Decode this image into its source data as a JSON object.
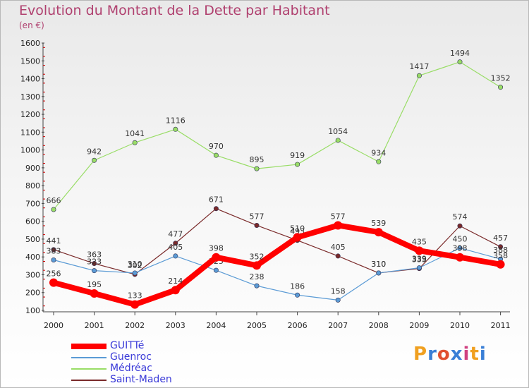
{
  "chart_data": {
    "type": "line",
    "title": "Evolution du Montant de la Dette par Habitant",
    "subtitle": "(en €)",
    "x": [
      "2000",
      "2001",
      "2002",
      "2003",
      "2004",
      "2005",
      "2006",
      "2007",
      "2008",
      "2009",
      "2010",
      "2011"
    ],
    "ylim": [
      100,
      1600
    ],
    "yticks": [
      100,
      200,
      300,
      400,
      500,
      600,
      700,
      800,
      900,
      1000,
      1100,
      1200,
      1300,
      1400,
      1500,
      1600
    ],
    "grid": false,
    "legend_position": "bottom-left",
    "series": [
      {
        "name": "GUITTé",
        "color": "#ff0000",
        "values": [
          256,
          195,
          133,
          214,
          398,
          352,
          510,
          577,
          539,
          435,
          398,
          358
        ]
      },
      {
        "name": "Guenroc",
        "color": "#5b9bd5",
        "values": [
          383,
          323,
          310,
          405,
          325,
          238,
          186,
          158,
          310,
          339,
          450,
          388
        ]
      },
      {
        "name": "Médréac",
        "color": "#99dd66",
        "values": [
          666,
          942,
          1041,
          1116,
          970,
          895,
          919,
          1054,
          934,
          1417,
          1494,
          1352
        ]
      },
      {
        "name": "Saint-Maden",
        "color": "#7a2a2a",
        "values": [
          441,
          363,
          302,
          477,
          671,
          577,
          493,
          405,
          310,
          335,
          574,
          457
        ]
      }
    ]
  },
  "logo": {
    "letters": [
      "P",
      "r",
      "o",
      "x",
      "i",
      "t",
      "i"
    ],
    "colors": [
      "#f0a020",
      "#3a7fd6",
      "#e05030",
      "#3a7fd6",
      "#d04080",
      "#f0a020",
      "#3a7fd6"
    ]
  }
}
